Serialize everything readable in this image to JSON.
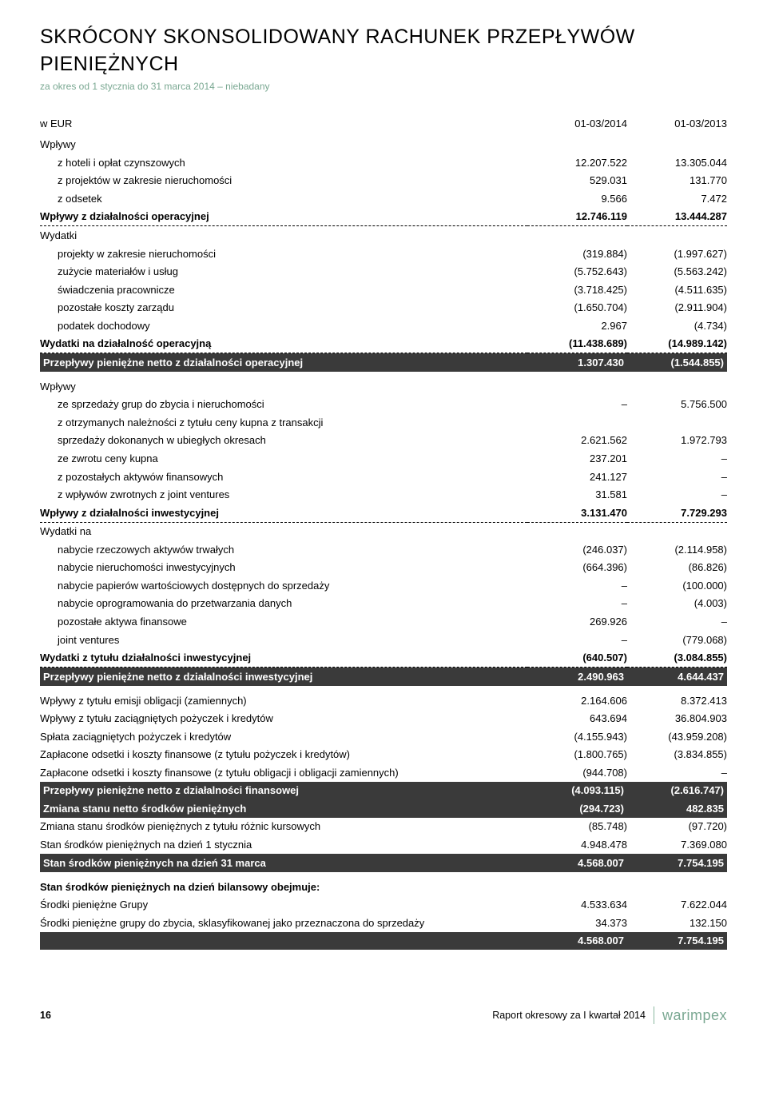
{
  "subtitle_color": "#7aa892",
  "brand_color": "#7aa892",
  "title": "SKRÓCONY SKONSOLIDOWANY RACHUNEK PRZEPŁYWÓW PIENIĘŻNYCH",
  "subtitle": "za okres od 1 stycznia do 31 marca 2014 – niebadany",
  "col_currency": "w EUR",
  "col1": "01-03/2014",
  "col2": "01-03/2013",
  "s1_header": "Wpływy",
  "s1_r1": {
    "l": "z hoteli i opłat czynszowych",
    "a": "12.207.522",
    "b": "13.305.044"
  },
  "s1_r2": {
    "l": "z projektów w zakresie nieruchomości",
    "a": "529.031",
    "b": "131.770"
  },
  "s1_r3": {
    "l": "z odsetek",
    "a": "9.566",
    "b": "7.472"
  },
  "s1_total_in": {
    "l": "Wpływy z działalności operacyjnej",
    "a": "12.746.119",
    "b": "13.444.287"
  },
  "s1_out_header": "Wydatki",
  "s1_o1": {
    "l": "projekty w zakresie nieruchomości",
    "a": "(319.884)",
    "b": "(1.997.627)"
  },
  "s1_o2": {
    "l": "zużycie materiałów i usług",
    "a": "(5.752.643)",
    "b": "(5.563.242)"
  },
  "s1_o3": {
    "l": "świadczenia pracownicze",
    "a": "(3.718.425)",
    "b": "(4.511.635)"
  },
  "s1_o4": {
    "l": "pozostałe koszty zarządu",
    "a": "(1.650.704)",
    "b": "(2.911.904)"
  },
  "s1_o5": {
    "l": "podatek dochodowy",
    "a": "2.967",
    "b": "(4.734)"
  },
  "s1_out_total": {
    "l": "Wydatki na działalność operacyjną",
    "a": "(11.438.689)",
    "b": "(14.989.142)"
  },
  "s1_net": {
    "l": "Przepływy pieniężne netto z działalności operacyjnej",
    "a": "1.307.430",
    "b": "(1.544.855)"
  },
  "s2_header": "Wpływy",
  "s2_r1": {
    "l": "ze sprzedaży grup do zbycia i nieruchomości",
    "a": "–",
    "b": "5.756.500"
  },
  "s2_r2a": "z otrzymanych należności z tytułu ceny kupna z transakcji",
  "s2_r2b": {
    "l": "sprzedaży dokonanych w ubiegłych okresach",
    "a": "2.621.562",
    "b": "1.972.793"
  },
  "s2_r3": {
    "l": "ze zwrotu ceny kupna",
    "a": "237.201",
    "b": "–"
  },
  "s2_r4": {
    "l": "z pozostałych aktywów finansowych",
    "a": "241.127",
    "b": "–"
  },
  "s2_r5": {
    "l": "z wpływów zwrotnych z joint ventures",
    "a": "31.581",
    "b": "–"
  },
  "s2_in_total": {
    "l": "Wpływy z działalności inwestycyjnej",
    "a": "3.131.470",
    "b": "7.729.293"
  },
  "s2_out_header": "Wydatki na",
  "s2_o1": {
    "l": "nabycie rzeczowych aktywów trwałych",
    "a": "(246.037)",
    "b": "(2.114.958)"
  },
  "s2_o2": {
    "l": "nabycie nieruchomości inwestycyjnych",
    "a": "(664.396)",
    "b": "(86.826)"
  },
  "s2_o3": {
    "l": "nabycie papierów wartościowych dostępnych do sprzedaży",
    "a": "–",
    "b": "(100.000)"
  },
  "s2_o4": {
    "l": "nabycie oprogramowania do przetwarzania danych",
    "a": "–",
    "b": "(4.003)"
  },
  "s2_o5": {
    "l": "pozostałe aktywa finansowe",
    "a": "269.926",
    "b": "–"
  },
  "s2_o6": {
    "l": "joint ventures",
    "a": "–",
    "b": "(779.068)"
  },
  "s2_out_total": {
    "l": "Wydatki z tytułu działalności inwestycyjnej",
    "a": "(640.507)",
    "b": "(3.084.855)"
  },
  "s2_net": {
    "l": "Przepływy pieniężne netto z działalności inwestycyjnej",
    "a": "2.490.963",
    "b": "4.644.437"
  },
  "s3_r1": {
    "l": "Wpływy z tytułu emisji obligacji (zamiennych)",
    "a": "2.164.606",
    "b": "8.372.413"
  },
  "s3_r2": {
    "l": "Wpływy z tytułu zaciągniętych pożyczek i kredytów",
    "a": "643.694",
    "b": "36.804.903"
  },
  "s3_r3": {
    "l": "Spłata zaciągniętych pożyczek i kredytów",
    "a": "(4.155.943)",
    "b": "(43.959.208)"
  },
  "s3_r4": {
    "l": "Zapłacone odsetki i koszty finansowe (z tytułu pożyczek i kredytów)",
    "a": "(1.800.765)",
    "b": "(3.834.855)"
  },
  "s3_r5": {
    "l": "Zapłacone odsetki i koszty finansowe (z tytułu obligacji i obligacji zamiennych)",
    "a": "(944.708)",
    "b": "–"
  },
  "s3_net": {
    "l": "Przepływy pieniężne netto z działalności finansowej",
    "a": "(4.093.115)",
    "b": "(2.616.747)"
  },
  "s3_change": {
    "l": "Zmiana stanu netto środków pieniężnych",
    "a": "(294.723)",
    "b": "482.835"
  },
  "s4_r1": {
    "l": "Zmiana stanu środków pieniężnych z tytułu różnic kursowych",
    "a": "(85.748)",
    "b": "(97.720)"
  },
  "s4_r2": {
    "l": "Stan środków pieniężnych na dzień 1 stycznia",
    "a": "4.948.478",
    "b": "7.369.080"
  },
  "s4_total": {
    "l": "Stan środków pieniężnych na dzień 31 marca",
    "a": "4.568.007",
    "b": "7.754.195"
  },
  "s5_header": "Stan środków pieniężnych na dzień bilansowy obejmuje:",
  "s5_r1": {
    "l": "Środki pieniężne Grupy",
    "a": "4.533.634",
    "b": "7.622.044"
  },
  "s5_r2": {
    "l": "Środki pieniężne grupy do zbycia, sklasyfikowanej jako przeznaczona do sprzedaży",
    "a": "34.373",
    "b": "132.150"
  },
  "s5_total": {
    "l": "",
    "a": "4.568.007",
    "b": "7.754.195"
  },
  "footer": {
    "page": "16",
    "text": "Raport okresowy za I kwartał 2014",
    "brand": "warimpex"
  }
}
